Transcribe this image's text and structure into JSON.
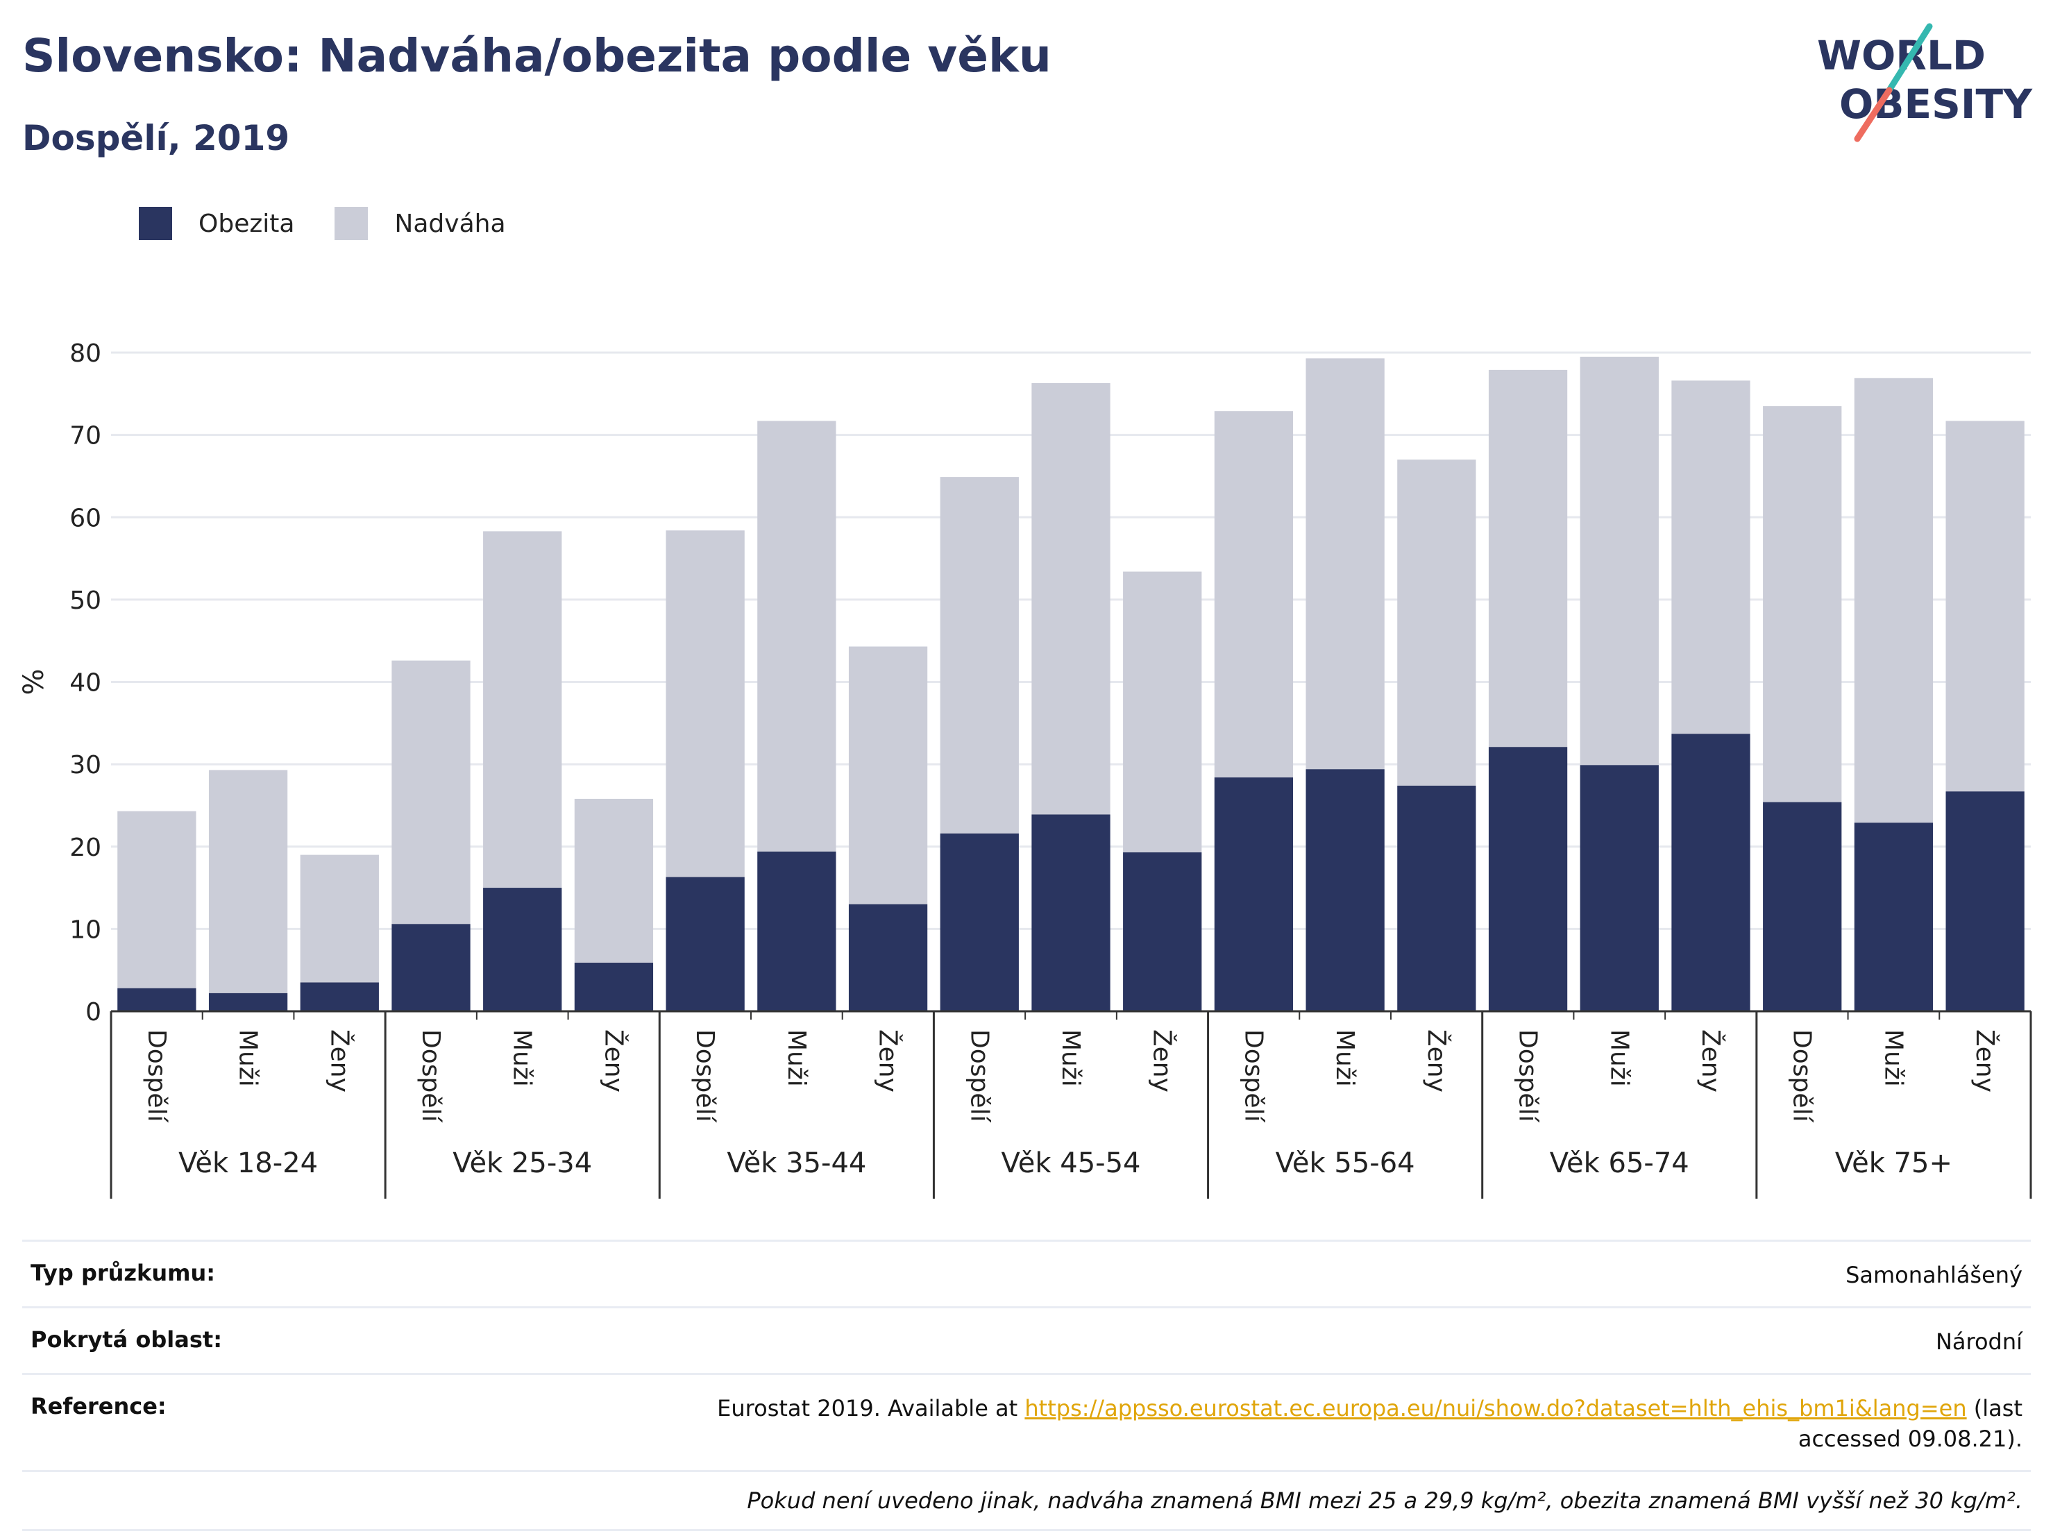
{
  "title": "Slovensko: Nadváha/obezita podle věku",
  "subtitle": "Dospělí, 2019",
  "logo": {
    "line1": "WORLD",
    "line2": "OBESITY"
  },
  "colors": {
    "obesity": "#2a3560",
    "overweight": "#cbcdd8",
    "grid": "#e6e8ee",
    "axis": "#333333",
    "link": "#e0a50a"
  },
  "legend": [
    {
      "label": "Obezita",
      "color": "#2a3560"
    },
    {
      "label": "Nadváha",
      "color": "#cbcdd8"
    }
  ],
  "chart_data": {
    "type": "bar",
    "stacked": true,
    "ylabel": "%",
    "ylim": [
      0,
      80
    ],
    "yticks": [
      0,
      10,
      20,
      30,
      40,
      50,
      60,
      70,
      80
    ],
    "grid": true,
    "legend_position": "top-left",
    "groups": [
      "Věk 18-24",
      "Věk 25-34",
      "Věk 35-44",
      "Věk 45-54",
      "Věk 55-64",
      "Věk 65-74",
      "Věk 75+"
    ],
    "subcategories": [
      "Dospělí",
      "Muži",
      "Ženy"
    ],
    "series": [
      {
        "name": "Obezita",
        "values": [
          2.8,
          2.2,
          3.5,
          10.6,
          15.0,
          5.9,
          16.3,
          19.4,
          13.0,
          21.6,
          23.9,
          19.3,
          28.4,
          29.4,
          27.4,
          32.1,
          29.9,
          33.7,
          25.4,
          22.9,
          26.7
        ]
      },
      {
        "name": "Nadváha",
        "values": [
          21.5,
          27.1,
          15.5,
          32.0,
          43.3,
          19.9,
          42.1,
          52.3,
          31.3,
          43.3,
          52.4,
          34.1,
          44.5,
          49.9,
          39.6,
          45.8,
          49.6,
          42.9,
          48.1,
          54.0,
          45.0
        ]
      }
    ]
  },
  "info": {
    "survey_type_label": "Typ průzkumu:",
    "survey_type_value": "Samonahlášený",
    "coverage_label": "Pokrytá oblast:",
    "coverage_value": "Národní",
    "reference_label": "Reference:",
    "reference_prefix": "Eurostat 2019. Available at ",
    "reference_link": "https://appsso.eurostat.ec.europa.eu/nui/show.do?dataset=hlth_ehis_bm1i&lang=en",
    "reference_suffix": " (last accessed 09.08.21).",
    "note": "Pokud není uvedeno jinak, nadváha znamená BMI mezi 25 a 29,9 kg/m², obezita znamená BMI vyšší než 30 kg/m²."
  }
}
